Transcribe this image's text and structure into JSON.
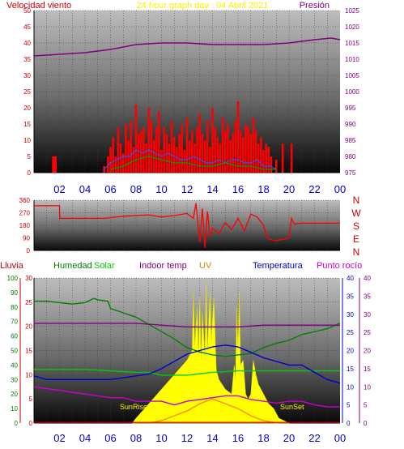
{
  "chart_data": [
    {
      "type": "line",
      "title": "24 hour graph day : 04 Abril 2021",
      "left_label": "Velocidad viento",
      "right_label": "Presión",
      "x_ticks": [
        "02",
        "04",
        "06",
        "08",
        "10",
        "12",
        "14",
        "16",
        "18",
        "20",
        "22",
        "00"
      ],
      "xlim": [
        0,
        24
      ],
      "ylim_left": [
        0,
        50
      ],
      "yticks_left": [
        0,
        5,
        10,
        15,
        20,
        25,
        30,
        35,
        40,
        45,
        50
      ],
      "ylim_right": [
        975,
        1025
      ],
      "yticks_right": [
        975,
        980,
        985,
        990,
        995,
        1000,
        1005,
        1010,
        1015,
        1020,
        1025
      ],
      "grid": true,
      "series": [
        {
          "role": "pressure",
          "axis": "right",
          "color": "#800080",
          "x": [
            0,
            2,
            4,
            6,
            8,
            10,
            12,
            14,
            16,
            18,
            20,
            22,
            23.3,
            24
          ],
          "values": [
            1011,
            1011.5,
            1012,
            1013,
            1014.5,
            1015,
            1015,
            1014.5,
            1014.5,
            1014.5,
            1015,
            1016,
            1016.5,
            1016
          ]
        },
        {
          "role": "gust",
          "axis": "left",
          "type": "bar",
          "color": "#ff0000",
          "x": [
            1.5,
            1.6,
            1.7,
            5.5,
            5.8,
            6.0,
            6.2,
            6.4,
            6.6,
            6.8,
            7.0,
            7.2,
            7.4,
            7.6,
            7.8,
            8.0,
            8.2,
            8.4,
            8.6,
            8.8,
            9.0,
            9.2,
            9.4,
            9.6,
            9.8,
            10.0,
            10.2,
            10.4,
            10.6,
            10.8,
            11.0,
            11.2,
            11.4,
            11.6,
            11.8,
            12.0,
            12.2,
            12.4,
            12.6,
            12.8,
            13.0,
            13.2,
            13.4,
            13.6,
            13.8,
            14.0,
            14.2,
            14.4,
            14.6,
            14.8,
            15.0,
            15.2,
            15.4,
            15.6,
            15.8,
            16.0,
            16.2,
            16.4,
            16.6,
            16.8,
            17.0,
            17.2,
            17.4,
            17.6,
            17.8,
            18.0,
            18.2,
            18.4,
            18.6,
            19.0,
            19.5,
            20.2
          ],
          "values": [
            5,
            5,
            5,
            2,
            5,
            8,
            11,
            5,
            14,
            9,
            6,
            15,
            10,
            16,
            8,
            21,
            12,
            13,
            14,
            9,
            20,
            16,
            10,
            14,
            19,
            7,
            14,
            12,
            9,
            16,
            11,
            8,
            12,
            15,
            7,
            17,
            10,
            13,
            9,
            14,
            18,
            12,
            10,
            16,
            8,
            20,
            14,
            11,
            9,
            17,
            13,
            15,
            10,
            12,
            16,
            22,
            13,
            11,
            15,
            14,
            12,
            17,
            13,
            9,
            11,
            7,
            9,
            8,
            5,
            4,
            9,
            9
          ]
        },
        {
          "role": "wind-speed",
          "axis": "left",
          "color": "#3355ff",
          "x": [
            5.5,
            6,
            6.5,
            7,
            7.5,
            8,
            8.5,
            9,
            9.5,
            10,
            10.5,
            11,
            11.5,
            12,
            12.5,
            13,
            13.5,
            14,
            14.5,
            15,
            15.5,
            16,
            16.5,
            17,
            17.5,
            18,
            18.5,
            19
          ],
          "values": [
            1,
            3,
            4,
            5,
            5,
            7,
            6,
            7,
            6,
            5,
            6,
            5,
            4,
            4,
            5,
            4,
            3,
            3,
            4,
            3,
            4,
            4,
            3,
            3,
            4,
            2,
            2,
            1
          ]
        },
        {
          "role": "wind-green",
          "axis": "left",
          "color": "#00a000",
          "x": [
            6,
            7,
            8,
            9,
            10,
            11,
            12,
            13,
            14,
            15,
            16,
            17,
            18,
            19
          ],
          "values": [
            1,
            2,
            4,
            5,
            4,
            3,
            3,
            2,
            2,
            3,
            2,
            2,
            1,
            1
          ]
        }
      ]
    },
    {
      "type": "line",
      "title": "",
      "y_ticks": [
        "360",
        "270",
        "180",
        "90",
        "0"
      ],
      "ylim": [
        0,
        360
      ],
      "compass_labels": [
        "N",
        "W",
        "S",
        "E",
        "N"
      ],
      "series": [
        {
          "role": "wind-direction",
          "color": "#ff0000",
          "x": [
            0,
            1,
            2,
            2.01,
            5.5,
            6,
            7,
            8,
            9,
            10,
            11,
            12,
            12.5,
            12.7,
            13,
            13.2,
            13.4,
            13.6,
            13.8,
            14,
            14.5,
            15,
            15.5,
            16,
            16.5,
            17,
            17.5,
            18,
            18.3,
            18.5,
            19,
            19.5,
            20,
            20.2,
            20.4,
            21,
            22,
            23,
            24
          ],
          "values": [
            320,
            320,
            320,
            230,
            230,
            235,
            245,
            250,
            255,
            240,
            250,
            265,
            230,
            340,
            60,
            300,
            20,
            280,
            100,
            160,
            120,
            200,
            150,
            230,
            140,
            260,
            240,
            180,
            90,
            80,
            70,
            80,
            90,
            230,
            190,
            195,
            195,
            195,
            195
          ]
        }
      ]
    },
    {
      "type": "line",
      "title": "",
      "legend": [
        {
          "label": "Lluvia",
          "color": "#cc0000"
        },
        {
          "label": "Humedad",
          "color": "#008000"
        },
        {
          "label": "Solar",
          "color": "#00cc00"
        },
        {
          "label": "Indoor temp",
          "color": "#800080"
        },
        {
          "label": "UV",
          "color": "#cc8800"
        },
        {
          "label": "Temperatura",
          "color": "#0000cc"
        },
        {
          "label": "Punto rocío",
          "color": "#cc00cc"
        }
      ],
      "ylim_rain": [
        0,
        100
      ],
      "yticks_rain": [
        0,
        10,
        20,
        30,
        40,
        50,
        60,
        70,
        80,
        90,
        100
      ],
      "ylim_left": [
        0,
        30
      ],
      "yticks_left": [
        0,
        5,
        10,
        15,
        20,
        25,
        30
      ],
      "ylim_right": [
        0,
        40
      ],
      "yticks_right": [
        0,
        5,
        10,
        15,
        20,
        25,
        30,
        35,
        40
      ],
      "annotations": [
        "SunRise",
        "SunSet"
      ],
      "series": [
        {
          "role": "humidity",
          "axis": "rain",
          "color": "#008000",
          "x": [
            0,
            1,
            2,
            3,
            4,
            4.7,
            5,
            5.8,
            6,
            7,
            8,
            9,
            10,
            11,
            12,
            13,
            14,
            15,
            16,
            17,
            18,
            19,
            20,
            21,
            22,
            23,
            24
          ],
          "values": [
            84,
            84,
            83,
            82,
            83,
            86,
            85,
            84,
            79,
            76,
            73,
            68,
            63,
            58,
            52,
            49,
            47,
            46,
            47,
            48,
            52,
            55,
            57,
            61,
            63,
            65,
            69
          ]
        },
        {
          "role": "solar",
          "axis": "rain",
          "color": "#00cc00",
          "x": [
            0,
            2,
            4,
            6,
            8,
            9,
            10,
            12,
            14,
            16,
            18,
            20,
            22,
            24
          ],
          "values": [
            37,
            37,
            37,
            36,
            35,
            35,
            33,
            33,
            35,
            36,
            36,
            36,
            36,
            36
          ]
        },
        {
          "role": "indoor-temp",
          "axis": "right",
          "color": "#800080",
          "x": [
            0,
            2,
            4,
            6,
            8,
            10,
            12,
            14,
            16,
            18,
            20,
            22,
            24
          ],
          "values": [
            27.5,
            27.5,
            27.5,
            27.5,
            27.5,
            27,
            26.5,
            26.5,
            26.5,
            27,
            27,
            27,
            27
          ]
        },
        {
          "role": "temperature",
          "axis": "right",
          "color": "#0000cc",
          "x": [
            0,
            1,
            2,
            3,
            4,
            5,
            6,
            7,
            8,
            9,
            10,
            11,
            12,
            13,
            14,
            15,
            16,
            17,
            18,
            19,
            20,
            21,
            22,
            23,
            24
          ],
          "values": [
            13,
            12,
            12,
            12,
            12,
            12,
            12,
            12.5,
            13,
            13.5,
            15,
            17,
            19,
            20,
            21,
            21.5,
            21,
            19.5,
            18,
            17,
            16,
            16,
            14,
            12,
            11
          ]
        },
        {
          "role": "dew-point",
          "axis": "right",
          "color": "#cc00cc",
          "x": [
            0,
            1,
            2,
            3,
            4,
            5,
            6,
            7,
            8,
            9,
            10,
            11,
            12,
            13,
            14,
            15,
            16,
            17,
            18,
            19,
            20,
            21,
            22,
            23,
            24
          ],
          "values": [
            10,
            9.5,
            9,
            8.5,
            8,
            7.5,
            7,
            7,
            6,
            6,
            6,
            5,
            6,
            6.5,
            7,
            7.5,
            7.5,
            6.5,
            6,
            5.5,
            6,
            6,
            5,
            4.5,
            4.5
          ]
        },
        {
          "role": "solar-radiation",
          "axis": "left",
          "type": "area",
          "color": "#ffff00",
          "x": [
            7.7,
            8,
            9,
            10,
            11,
            12,
            12.4,
            12.5,
            12.6,
            12.8,
            12.9,
            13.0,
            13.1,
            13.2,
            13.4,
            13.5,
            13.6,
            13.8,
            13.9,
            14.1,
            14.3,
            14.5,
            15,
            15.5,
            15.7,
            15.8,
            15.9,
            16.0,
            16.1,
            16.2,
            16.4,
            16.6,
            16.8,
            17,
            17.2,
            17.4,
            17.6,
            18.0,
            18.4,
            18.8,
            19.2,
            19.6,
            20.0
          ],
          "values": [
            0,
            1,
            4,
            7,
            10,
            13,
            15,
            27,
            16,
            24,
            14,
            26,
            13,
            23,
            14,
            29,
            15,
            27,
            17,
            26,
            11,
            9,
            7,
            6,
            12,
            9,
            24,
            15,
            27,
            12,
            13,
            6,
            5,
            6,
            13,
            10,
            8,
            6,
            4,
            3,
            1,
            0.5,
            0
          ]
        },
        {
          "role": "uv-index",
          "axis": "left",
          "color": "#ff8800",
          "x": [
            9,
            10,
            11,
            12,
            13,
            14,
            15,
            16,
            17,
            18,
            19
          ],
          "values": [
            0,
            0.5,
            1.5,
            2.5,
            4,
            5,
            4,
            3,
            1.5,
            0.5,
            0
          ]
        }
      ],
      "rain_values": [
        0,
        0,
        0,
        0,
        0,
        0,
        0,
        0,
        0,
        0,
        0,
        0,
        0,
        0,
        0,
        0,
        0,
        0,
        0,
        0,
        0,
        0,
        0,
        0
      ]
    }
  ]
}
